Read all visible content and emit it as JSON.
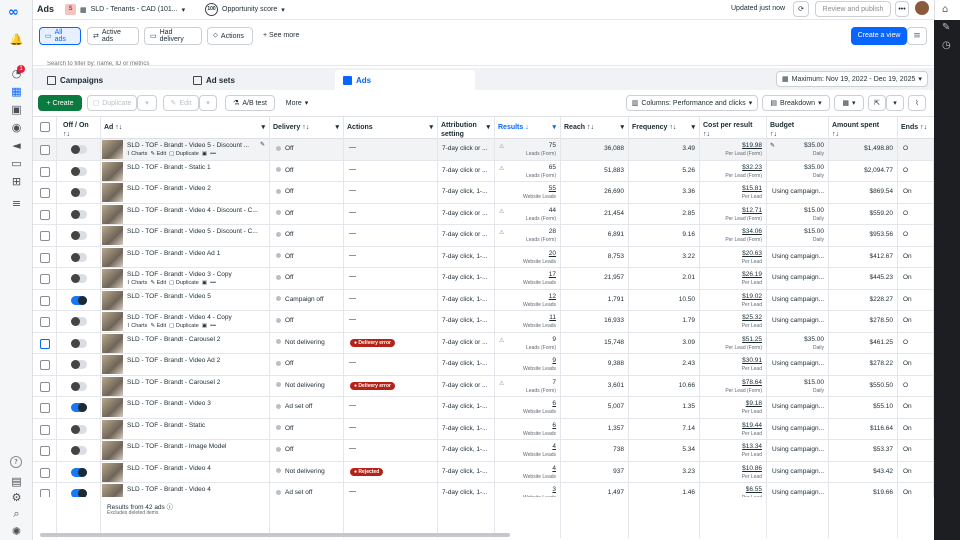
{
  "header": {
    "title": "Ads",
    "account_initial": "S",
    "account_name": "SLD - Tenants - CAD (101...",
    "opportunity_score_value": "100",
    "opportunity_score_label": "Opportunity score",
    "updated": "Updated just now",
    "refresh_icon": "refresh-icon",
    "review_publish": "Review and publish",
    "more_icon": "more-icon"
  },
  "quick_tabs": [
    {
      "label": "All ads"
    },
    {
      "label": "Active ads"
    },
    {
      "label": "Had delivery"
    },
    {
      "label": "Actions"
    }
  ],
  "see_more": "+ See more",
  "create_view": "Create a view",
  "search": {
    "placeholder": "Search to filter by: name, ID or metrics"
  },
  "level_tabs": {
    "campaigns": "Campaigns",
    "adsets": "Ad sets",
    "ads": "Ads"
  },
  "date_range": "Maximum: Nov 19, 2022 - Dec 19, 2025",
  "toolbar": {
    "create": "+ Create",
    "duplicate": "Duplicate",
    "edit": "Edit",
    "ab_test": "A/B test",
    "more": "More",
    "columns": "Columns: Performance and clicks",
    "breakdown": "Breakdown"
  },
  "nav": {
    "notification_count": "1",
    "help": "?"
  },
  "columns": {
    "offon": "Off / On",
    "ad": "Ad",
    "delivery": "Delivery",
    "actions": "Actions",
    "attribution": "Attribution setting",
    "results": "Results",
    "reach": "Reach",
    "frequency": "Frequency",
    "cost": "Cost per result",
    "budget": "Budget",
    "amount": "Amount spent",
    "ends": "Ends"
  },
  "sort_arrows": "↑↓",
  "results_sort": "↓",
  "chevron": "▾",
  "ad_actions": {
    "charts": "Charts",
    "edit": "Edit",
    "duplicate": "Duplicate",
    "more": "•••"
  },
  "rows": [
    {
      "on": false,
      "name": "SLD - TOF - Brandt - Video 5 - Discount ...",
      "hover": true,
      "delivery": "Off",
      "action": "—",
      "attr": "7-day click or ...",
      "results": "75",
      "rlabel": "Leads (Form)",
      "tri": true,
      "reach": "36,088",
      "freq": "3.49",
      "cost": "$19.98",
      "clabel": "Per Lead (Form)",
      "budget": "$35.00",
      "blabel": "Daily",
      "pen": true,
      "spent": "$1,498.80",
      "ends": "O"
    },
    {
      "on": false,
      "name": "SLD - TOF - Brandt - Static 1",
      "delivery": "Off",
      "action": "—",
      "attr": "7-day click or ...",
      "results": "65",
      "rlabel": "Leads (Form)",
      "tri": true,
      "reach": "51,883",
      "freq": "5.26",
      "cost": "$32.23",
      "clabel": "Per Lead (Form)",
      "budget": "$35.00",
      "blabel": "Daily",
      "spent": "$2,094.77",
      "ends": "O"
    },
    {
      "on": false,
      "name": "SLD - TOF - Brandt - Video 2",
      "delivery": "Off",
      "action": "—",
      "attr": "7-day click, 1-...",
      "results": "55",
      "rlabel": "Website Leads",
      "reach": "26,690",
      "freq": "3.36",
      "cost": "$15.81",
      "clabel": "Per Lead",
      "using": "Using campaign...",
      "spent": "$869.54",
      "ends": "On"
    },
    {
      "on": false,
      "name": "SLD - TOF - Brandt - Video 4 - Discount - C...",
      "delivery": "Off",
      "action": "—",
      "attr": "7-day click or ...",
      "results": "44",
      "rlabel": "Leads (Form)",
      "tri": true,
      "reach": "21,454",
      "freq": "2.85",
      "cost": "$12.71",
      "clabel": "Per Lead (Form)",
      "budget": "$15.00",
      "blabel": "Daily",
      "spent": "$559.20",
      "ends": "O"
    },
    {
      "on": false,
      "name": "SLD - TOF - Brandt - Video 5 - Discount - C...",
      "delivery": "Off",
      "action": "—",
      "attr": "7-day click or ...",
      "results": "28",
      "rlabel": "Leads (Form)",
      "tri": true,
      "reach": "6,891",
      "freq": "9.16",
      "cost": "$34.06",
      "clabel": "Per Lead (Form)",
      "budget": "$15.00",
      "blabel": "Daily",
      "spent": "$953.56",
      "ends": "O"
    },
    {
      "on": false,
      "name": "SLD - TOF - Brandt - Video Ad 1",
      "delivery": "Off",
      "action": "—",
      "attr": "7-day click, 1-...",
      "results": "20",
      "rlabel": "Website Leads",
      "reach": "8,753",
      "freq": "3.22",
      "cost": "$20.63",
      "clabel": "Per Lead",
      "using": "Using campaign...",
      "spent": "$412.67",
      "ends": "On"
    },
    {
      "on": false,
      "name": "SLD - TOF - Brandt - Video 3 - Copy",
      "actionsrow": true,
      "delivery": "Off",
      "action": "—",
      "attr": "7-day click, 1-...",
      "results": "17",
      "rlabel": "Website Leads",
      "reach": "21,957",
      "freq": "2.01",
      "cost": "$26.19",
      "clabel": "Per Lead",
      "using": "Using campaign...",
      "spent": "$445.23",
      "ends": "On"
    },
    {
      "on": true,
      "name": "SLD - TOF - Brandt - Video 5",
      "delivery": "Campaign off",
      "action": "—",
      "attr": "7-day click, 1-...",
      "results": "12",
      "rlabel": "Website Leads",
      "reach": "1,791",
      "freq": "10.50",
      "cost": "$19.02",
      "clabel": "Per Lead",
      "using": "Using campaign...",
      "spent": "$228.27",
      "ends": "On"
    },
    {
      "on": false,
      "name": "SLD - TOF - Brandt - Video 4 - Copy",
      "actionsrow": true,
      "delivery": "Off",
      "action": "—",
      "attr": "7-day click, 1-...",
      "results": "11",
      "rlabel": "Website Leads",
      "reach": "16,933",
      "freq": "1.79",
      "cost": "$25.32",
      "clabel": "Per Lead",
      "using": "Using campaign...",
      "spent": "$278.50",
      "ends": "On"
    },
    {
      "on": false,
      "blue": true,
      "name": "SLD - TOF - Brandt - Carousel 2",
      "delivery": "Not delivering",
      "badge": "Delivery error",
      "attr": "7-day click or ...",
      "results": "9",
      "rlabel": "Leads (Form)",
      "tri": true,
      "reach": "15,748",
      "freq": "3.09",
      "cost": "$51.25",
      "clabel": "Per Lead (Form)",
      "budget": "$35.00",
      "blabel": "Daily",
      "spent": "$461.25",
      "ends": "O"
    },
    {
      "on": false,
      "name": "SLD - TOF - Brandt - Video Ad 2",
      "delivery": "Off",
      "action": "—",
      "attr": "7-day click, 1-...",
      "results": "9",
      "rlabel": "Website Leads",
      "reach": "9,388",
      "freq": "2.43",
      "cost": "$30.91",
      "clabel": "Per Lead",
      "using": "Using campaign...",
      "spent": "$278.22",
      "ends": "On"
    },
    {
      "on": false,
      "name": "SLD - TOF - Brandt - Carousel 2",
      "delivery": "Not delivering",
      "badge": "Delivery error",
      "attr": "7-day click or ...",
      "results": "7",
      "rlabel": "Leads (Form)",
      "tri": true,
      "reach": "3,601",
      "freq": "10.66",
      "cost": "$78.64",
      "clabel": "Per Lead (Form)",
      "budget": "$15.00",
      "blabel": "Daily",
      "spent": "$550.50",
      "ends": "O"
    },
    {
      "on": true,
      "name": "SLD - TOF - Brandt - Video 3",
      "delivery": "Ad set off",
      "action": "—",
      "attr": "7-day click, 1-...",
      "results": "6",
      "rlabel": "Website Leads",
      "reach": "5,007",
      "freq": "1.35",
      "cost": "$9.18",
      "clabel": "Per Lead",
      "using": "Using campaign...",
      "spent": "$55.10",
      "ends": "On"
    },
    {
      "on": false,
      "name": "SLD - TOF - Brandt - Static",
      "delivery": "Off",
      "action": "—",
      "attr": "7-day click, 1-...",
      "results": "6",
      "rlabel": "Website Leads",
      "reach": "1,357",
      "freq": "7.14",
      "cost": "$19.44",
      "clabel": "Per Lead",
      "using": "Using campaign...",
      "spent": "$116.64",
      "ends": "On"
    },
    {
      "on": false,
      "name": "SLD - TOF - Brandt - Image Model",
      "delivery": "Off",
      "action": "—",
      "attr": "7-day click, 1-...",
      "results": "4",
      "rlabel": "Website Leads",
      "reach": "738",
      "freq": "5.34",
      "cost": "$13.34",
      "clabel": "Per Lead",
      "using": "Using campaign...",
      "spent": "$53.37",
      "ends": "On"
    },
    {
      "on": true,
      "name": "SLD - TOF - Brandt - Video 4",
      "delivery": "Not delivering",
      "badge": "Rejected",
      "attr": "7-day click, 1-...",
      "results": "4",
      "rlabel": "Website Leads",
      "reach": "937",
      "freq": "3.23",
      "cost": "$10.86",
      "clabel": "Per Lead",
      "using": "Using campaign...",
      "spent": "$43.42",
      "ends": "On"
    },
    {
      "on": true,
      "name": "SLD - TOF - Brandt - Video 4",
      "delivery": "Ad set off",
      "action": "—",
      "attr": "7-day click, 1-...",
      "results": "3",
      "rlabel": "Website Leads",
      "reach": "1,497",
      "freq": "1.46",
      "cost": "$6.55",
      "clabel": "Per Lead",
      "using": "Using campaign...",
      "spent": "$19.66",
      "ends": "On"
    }
  ],
  "footer": {
    "results_from": "Results from 42 ads",
    "info_icon": "ⓘ",
    "excludes": "Excludes deleted items"
  },
  "colors": {
    "primary": "#0866ff",
    "create": "#0b7a3e",
    "error": "#b42318"
  }
}
